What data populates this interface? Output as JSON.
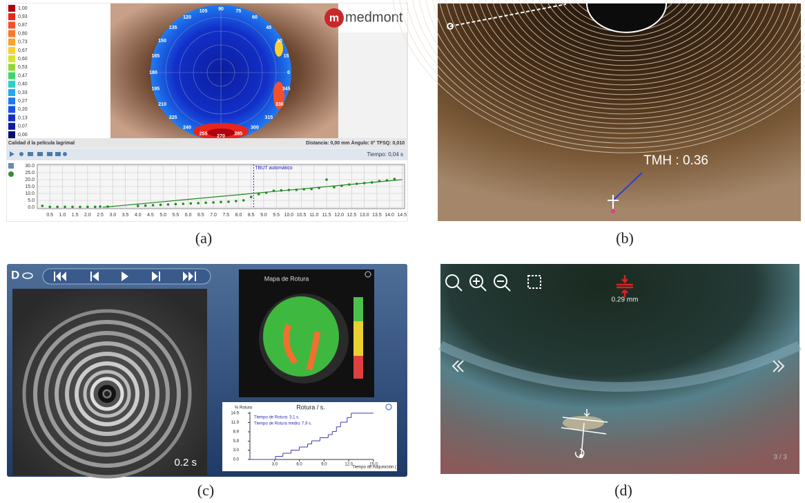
{
  "panel_a": {
    "label": "(a)",
    "scale_labels": [
      "1,00",
      "0,93",
      "0,87",
      "0,80",
      "0,73",
      "0,67",
      "0,60",
      "0,53",
      "0,47",
      "0,40",
      "0,33",
      "0,27",
      "0,20",
      "0,13",
      "0,07",
      "0,00"
    ],
    "scale_colors": [
      "#b0000d",
      "#e8251c",
      "#f4502a",
      "#f87a2c",
      "#fca12a",
      "#fbd02b",
      "#d4e42b",
      "#8ed83a",
      "#3fd36b",
      "#27d1c4",
      "#20a9ef",
      "#2079f0",
      "#1a52e6",
      "#1230c9",
      "#0b1c9f",
      "#06106e"
    ],
    "logo": "medmont",
    "angle_labels": [
      0,
      15,
      30,
      45,
      60,
      75,
      90,
      105,
      120,
      135,
      150,
      165,
      180,
      195,
      210,
      225,
      240,
      255,
      270,
      285,
      300,
      315,
      330,
      345
    ],
    "quality_label": "Calidad d la película lagrimal",
    "measurements": "Distancia: 0,00 mm   Ángulo: 0°   TFSQ: 0,010",
    "time": "Tiempo: 0,04 s",
    "plot": {
      "type": "scatter",
      "annotation": "TBUT automático",
      "annotation_x": 8.6,
      "color": "#1f8a1f",
      "xlim": [
        0,
        14.6
      ],
      "ylim": [
        0,
        30
      ],
      "yticks": [
        {
          "value": 0,
          "label": "0.0"
        },
        {
          "value": 5,
          "label": "5.0"
        },
        {
          "value": 10,
          "label": "10.0"
        },
        {
          "value": 15,
          "label": "15.0"
        },
        {
          "value": 20,
          "label": "20.0"
        },
        {
          "value": 25,
          "label": "25.0"
        },
        {
          "value": 30,
          "label": "30.0"
        }
      ],
      "xticks": [
        0.5,
        {
          "value": 1,
          "label": "1.0"
        },
        1.5,
        {
          "value": 2,
          "label": "2.0"
        },
        2.5,
        {
          "value": 3,
          "label": "3.0"
        },
        3.5,
        {
          "value": 4,
          "label": "4.0"
        },
        4.5,
        {
          "value": 5,
          "label": "5.0"
        },
        5.5,
        {
          "value": 6,
          "label": "6.0"
        },
        6.5,
        {
          "value": 7,
          "label": "7.0"
        },
        7.5,
        {
          "value": 8,
          "label": "8.0"
        },
        8.5,
        {
          "value": 9,
          "label": "9.0"
        },
        9.5,
        {
          "value": 10,
          "label": "10.0"
        },
        10.5,
        {
          "value": 11,
          "label": "11.0"
        },
        11.5,
        {
          "value": 12,
          "label": "12.0"
        },
        12.5,
        {
          "value": 13,
          "label": "13.0"
        },
        13.5,
        {
          "value": 14,
          "label": "14.0"
        },
        14.5
      ],
      "x": [
        0.2,
        0.5,
        0.8,
        1.1,
        1.4,
        1.7,
        2.0,
        2.3,
        2.5,
        2.8,
        4.0,
        4.3,
        4.6,
        4.9,
        5.2,
        5.5,
        5.8,
        6.1,
        6.4,
        6.7,
        7.0,
        7.3,
        7.6,
        7.9,
        8.2,
        8.5,
        8.8,
        9.1,
        9.4,
        9.7,
        10.0,
        10.3,
        10.6,
        10.9,
        11.2,
        11.5,
        11.8,
        12.1,
        12.4,
        12.7,
        13.0,
        13.3,
        13.6,
        13.9,
        14.2
      ],
      "y": [
        1.0,
        0.3,
        0.3,
        0.3,
        0.3,
        0.3,
        0.3,
        0.3,
        0.5,
        0.5,
        1.0,
        1.2,
        1.5,
        1.8,
        2.0,
        2.3,
        2.5,
        2.8,
        3.0,
        3.3,
        3.5,
        3.8,
        4.0,
        4.5,
        5.0,
        7.5,
        9.5,
        10.5,
        12.0,
        12.2,
        12.5,
        12.6,
        13.0,
        13.2,
        14.0,
        20.0,
        14.5,
        15.5,
        16.5,
        17.0,
        17.5,
        18.0,
        19.0,
        19.5,
        20.5
      ],
      "trend": {
        "x": [
          2.6,
          14.5
        ],
        "y": [
          0,
          20
        ]
      }
    }
  },
  "panel_b": {
    "label": "(b)",
    "measurement": "TMH : 0.36"
  },
  "panel_c": {
    "label": "(c)",
    "eye": "D",
    "map_title": "Mapa de Rotura",
    "frame_time": "0.2 s",
    "plot": {
      "type": "line",
      "title": "Rotura / s.",
      "ylabel": "% Rotura",
      "xlabel": "Tiempo de Adquisición (",
      "notes": [
        "Tiempo de Rotura: 3,1 s.",
        "Tiempo de Rotura medio: 7,9 s."
      ],
      "color": "#3a3ab8",
      "xlim": [
        0,
        15
      ],
      "ylim": [
        0,
        14.9
      ],
      "yticks": [
        {
          "value": 0,
          "label": "0.0"
        },
        {
          "value": 3,
          "label": "3.0"
        },
        {
          "value": 5.9,
          "label": "5.9"
        },
        {
          "value": 8.9,
          "label": "8.9"
        },
        {
          "value": 11.9,
          "label": "11.9"
        },
        {
          "value": 14.9,
          "label": "14.9"
        }
      ],
      "xticks": [
        {
          "value": 3,
          "label": "3.0"
        },
        {
          "value": 6,
          "label": "6.0"
        },
        {
          "value": 9,
          "label": "9.0"
        },
        {
          "value": 12,
          "label": "12.0"
        },
        {
          "value": 15,
          "label": "15.0"
        }
      ],
      "x": [
        0,
        3.1,
        4.0,
        5.0,
        6.0,
        7.0,
        7.5,
        8.5,
        9.5,
        10.0,
        10.5,
        11.0,
        11.8,
        12.3
      ],
      "y": [
        0,
        1.0,
        2.0,
        3.0,
        4.0,
        5.0,
        6.0,
        7.0,
        8.0,
        9.0,
        10.5,
        12.0,
        13.5,
        14.9
      ]
    }
  },
  "panel_d": {
    "label": "(d)",
    "distance": "0.29 mm",
    "page": "3 / 3"
  }
}
